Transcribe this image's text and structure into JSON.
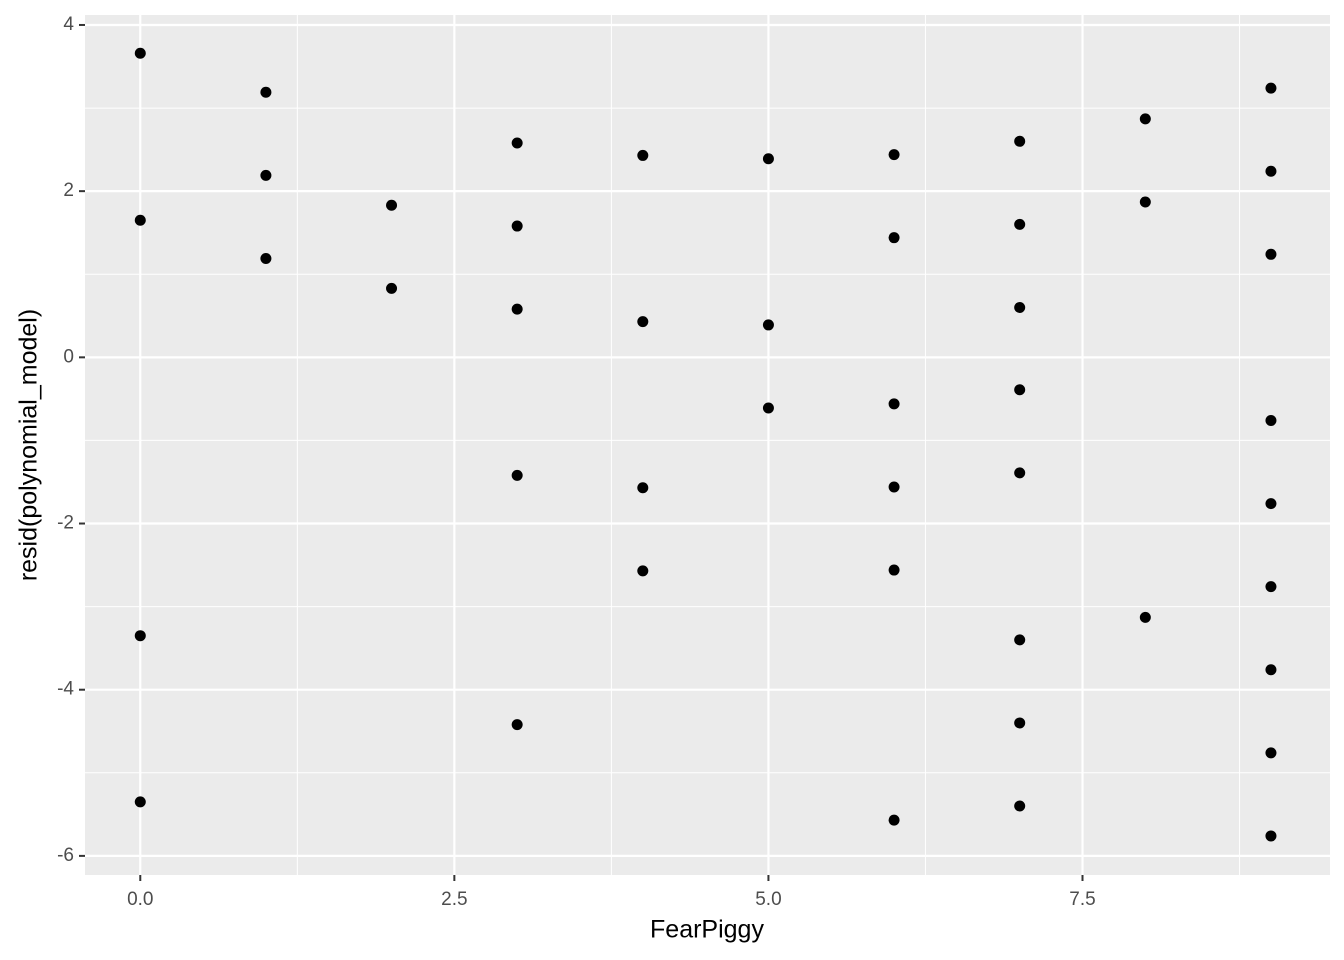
{
  "chart_data": {
    "type": "scatter",
    "x_label": "FearPiggy",
    "y_label": "resid(polynomial_model)",
    "color": "#000000",
    "grid": true,
    "xlim": [
      -0.44,
      9.47
    ],
    "ylim": [
      -6.23,
      4.12
    ],
    "xticks": [
      {
        "value": 0,
        "label": "0.0"
      },
      2.5,
      {
        "value": 5,
        "label": "5.0"
      },
      7.5
    ],
    "yticks": [
      -6,
      -4,
      -2,
      0,
      2,
      4
    ],
    "x": [
      0,
      0,
      0,
      0,
      1,
      1,
      1,
      2,
      2,
      3,
      3,
      3,
      3,
      3,
      4,
      4,
      4,
      4,
      5,
      5,
      5,
      6,
      6,
      6,
      6,
      6,
      6,
      7,
      7,
      7,
      7,
      7,
      7,
      7,
      7,
      8,
      8,
      8,
      9,
      9,
      9,
      9,
      9,
      9,
      9,
      9,
      9
    ],
    "values": [
      3.66,
      1.65,
      -3.35,
      -5.35,
      3.19,
      2.19,
      1.19,
      1.83,
      0.83,
      2.58,
      1.58,
      0.58,
      -1.42,
      -4.42,
      2.43,
      0.43,
      -1.57,
      -2.57,
      2.39,
      0.39,
      -0.61,
      2.44,
      1.44,
      -0.56,
      -1.56,
      -2.56,
      -5.57,
      2.6,
      1.6,
      0.6,
      -0.39,
      -1.39,
      -3.4,
      -4.4,
      -5.4,
      2.87,
      1.87,
      -3.13,
      3.24,
      2.24,
      1.24,
      -0.76,
      -1.76,
      -2.76,
      -3.76,
      -4.76,
      -5.76
    ]
  }
}
